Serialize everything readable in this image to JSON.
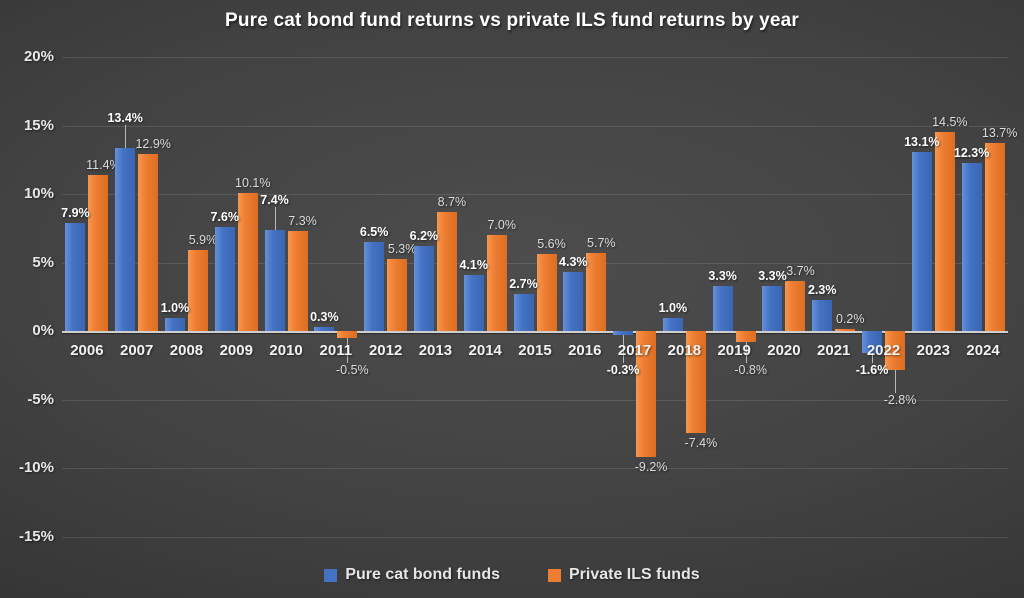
{
  "title": "Pure cat bond fund returns vs private ILS fund returns by year",
  "colors": {
    "blue": "#4472C4",
    "orange": "#ED7D31",
    "background": "#3f3f3f",
    "gridline": "#5a5a5a",
    "zero_axis": "#cfcfcf",
    "text": "#e8e8e8"
  },
  "chart_data": {
    "type": "bar",
    "title": "Pure cat bond fund returns vs private ILS fund returns by year",
    "categories": [
      "2006",
      "2007",
      "2008",
      "2009",
      "2010",
      "2011",
      "2012",
      "2013",
      "2014",
      "2015",
      "2016",
      "2017",
      "2018",
      "2019",
      "2020",
      "2021",
      "2022",
      "2023",
      "2024"
    ],
    "series": [
      {
        "name": "Pure cat bond funds",
        "color": "#4472C4",
        "values": [
          7.9,
          13.4,
          1.0,
          7.6,
          7.4,
          0.3,
          6.5,
          6.2,
          4.1,
          2.7,
          4.3,
          -0.3,
          1.0,
          3.3,
          3.3,
          2.3,
          -1.6,
          13.1,
          12.3
        ]
      },
      {
        "name": "Private ILS funds",
        "color": "#ED7D31",
        "values": [
          11.4,
          12.9,
          5.9,
          10.1,
          7.3,
          -0.5,
          5.3,
          8.7,
          7.0,
          5.6,
          5.7,
          -9.2,
          -7.4,
          -0.8,
          3.7,
          0.2,
          -2.8,
          14.5,
          13.7
        ]
      }
    ],
    "xlabel": "",
    "ylabel": "",
    "ylim": [
      -15,
      20
    ],
    "ytick_step": 5,
    "yticks": [
      "20%",
      "15%",
      "10%",
      "5%",
      "0%",
      "-5%",
      "-10%",
      "-15%"
    ],
    "data_labels": true,
    "label_format": "0.0%",
    "grid": true,
    "legend_position": "bottom"
  },
  "legend": {
    "items": [
      {
        "label": "Pure cat bond funds",
        "color": "#4472C4"
      },
      {
        "label": "Private ILS funds",
        "color": "#ED7D31"
      }
    ]
  }
}
